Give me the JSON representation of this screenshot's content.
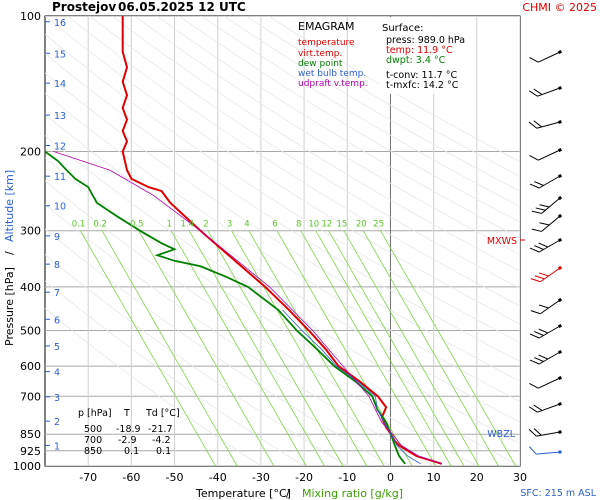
{
  "header": {
    "station": "Prostejov",
    "datetime": "06.05.2025 12 UTC",
    "credit": "CHMI © 2025"
  },
  "legend": {
    "title": "EMAGRAM",
    "items": [
      {
        "label": "temperature",
        "color": "#e00000"
      },
      {
        "label": "virt.temp.",
        "color": "#e00000"
      },
      {
        "label": "dew point",
        "color": "#008000"
      },
      {
        "label": "wet bulb temp.",
        "color": "#2a5fd0"
      },
      {
        "label": "udpraft v.temp.",
        "color": "#b000b0"
      }
    ]
  },
  "surface": {
    "title": "Surface:",
    "press": "press: 989.0 hPa",
    "temp": "temp: 11.9 °C",
    "dwpt": "dwpt: 3.4 °C",
    "tconv": "t-conv: 11.7 °C",
    "tmxfc": "t-mxfc: 14.2 °C"
  },
  "levels_table": {
    "headers": [
      "p [hPa]",
      "T",
      "Td [°C]"
    ],
    "rows": [
      [
        "500",
        "-18.9",
        "-21.7"
      ],
      [
        "700",
        "-2.9",
        "-4.2"
      ],
      [
        "850",
        "0.1",
        "0.1"
      ]
    ]
  },
  "markers": {
    "mxws": "MXWS",
    "wbzl": "WBZL"
  },
  "footer": {
    "sfc": "SFC: 215 m ASL"
  },
  "chart_data": {
    "type": "line",
    "title": "Prostejov 06.05.2025 12 UTC",
    "xlabel": "Temperature [°C]",
    "xlabel2": "Mixing ratio [g/kg]",
    "ylabel": "Pressure [hPa]",
    "ylabel2": "Altitude [km]",
    "xlim": [
      -80,
      30
    ],
    "ylim": [
      1000,
      100
    ],
    "y_scale": "log",
    "x_ticks": [
      -70,
      -60,
      -50,
      -40,
      -30,
      -20,
      -10,
      0,
      10,
      20,
      30
    ],
    "p_ticks": [
      {
        "p": 100,
        "label": "100"
      },
      {
        "p": 200,
        "label": "200"
      },
      {
        "p": 300,
        "label": "300"
      },
      {
        "p": 400,
        "label": "400"
      },
      {
        "p": 500,
        "label": "500"
      },
      {
        "p": 600,
        "label": "600"
      },
      {
        "p": 700,
        "label": "700"
      },
      {
        "p": 850,
        "label": "850"
      },
      {
        "p": 925,
        "label": "925"
      },
      {
        "p": 1000,
        "label": "1000"
      }
    ],
    "altitude_ticks": [
      {
        "km": 1,
        "p": 900
      },
      {
        "km": 2,
        "p": 795
      },
      {
        "km": 3,
        "p": 702
      },
      {
        "km": 4,
        "p": 617
      },
      {
        "km": 5,
        "p": 541
      },
      {
        "km": 6,
        "p": 472
      },
      {
        "km": 7,
        "p": 411
      },
      {
        "km": 8,
        "p": 356
      },
      {
        "km": 9,
        "p": 308
      },
      {
        "km": 10,
        "p": 264
      },
      {
        "km": 11,
        "p": 227
      },
      {
        "km": 12,
        "p": 194
      },
      {
        "km": 13,
        "p": 166
      },
      {
        "km": 14,
        "p": 141
      },
      {
        "km": 15,
        "p": 121
      },
      {
        "km": 16,
        "p": 103
      }
    ],
    "mixing_ratio_labels": [
      "0.1",
      "0.2",
      "0.5",
      "1",
      "1.4",
      "2",
      "3",
      "4",
      "6",
      "8",
      "10",
      "12",
      "15",
      "20",
      "25"
    ],
    "mixing_ratio_lines": [
      {
        "label": "0.1",
        "t1000": -40.5
      },
      {
        "label": "0.2",
        "t1000": -35.5
      },
      {
        "label": "0.5",
        "t1000": -27
      },
      {
        "label": "1",
        "t1000": -19.5
      },
      {
        "label": "1.4",
        "t1000": -15.3
      },
      {
        "label": "2",
        "t1000": -11
      },
      {
        "label": "3",
        "t1000": -5.5
      },
      {
        "label": "4",
        "t1000": -1.5
      },
      {
        "label": "6",
        "t1000": 5
      },
      {
        "label": "8",
        "t1000": 10.5
      },
      {
        "label": "10",
        "t1000": 14
      },
      {
        "label": "12",
        "t1000": 17
      },
      {
        "label": "15",
        "t1000": 20.5
      },
      {
        "label": "20",
        "t1000": 25
      },
      {
        "label": "25",
        "t1000": 29
      }
    ],
    "series": [
      {
        "name": "temperature",
        "color": "#e00000",
        "points": [
          [
            989,
            11.9
          ],
          [
            950,
            6
          ],
          [
            900,
            2
          ],
          [
            880,
            1
          ],
          [
            850,
            0.1
          ],
          [
            820,
            -1
          ],
          [
            780,
            -2
          ],
          [
            760,
            -1.5
          ],
          [
            740,
            -1
          ],
          [
            700,
            -2.9
          ],
          [
            650,
            -7
          ],
          [
            600,
            -12
          ],
          [
            550,
            -15
          ],
          [
            500,
            -18.9
          ],
          [
            450,
            -23.5
          ],
          [
            400,
            -29
          ],
          [
            350,
            -36
          ],
          [
            300,
            -44
          ],
          [
            260,
            -51
          ],
          [
            245,
            -53
          ],
          [
            240,
            -56
          ],
          [
            235,
            -58
          ],
          [
            230,
            -60
          ],
          [
            220,
            -61
          ],
          [
            200,
            -62
          ],
          [
            190,
            -61
          ],
          [
            180,
            -62
          ],
          [
            170,
            -61
          ],
          [
            160,
            -62
          ],
          [
            150,
            -61
          ],
          [
            140,
            -62
          ],
          [
            130,
            -61
          ],
          [
            120,
            -62
          ],
          [
            110,
            -62
          ],
          [
            100,
            -62
          ]
        ]
      },
      {
        "name": "dew point",
        "color": "#008000",
        "points": [
          [
            989,
            3.4
          ],
          [
            950,
            2
          ],
          [
            900,
            1
          ],
          [
            850,
            0.1
          ],
          [
            800,
            -1
          ],
          [
            750,
            -3
          ],
          [
            700,
            -4.2
          ],
          [
            650,
            -8
          ],
          [
            600,
            -13
          ],
          [
            550,
            -17
          ],
          [
            500,
            -21.7
          ],
          [
            450,
            -26
          ],
          [
            400,
            -33
          ],
          [
            380,
            -38
          ],
          [
            360,
            -44
          ],
          [
            350,
            -50
          ],
          [
            340,
            -54
          ],
          [
            330,
            -50
          ],
          [
            320,
            -53
          ],
          [
            300,
            -58
          ],
          [
            280,
            -63
          ],
          [
            260,
            -68
          ],
          [
            240,
            -70
          ],
          [
            230,
            -73
          ],
          [
            220,
            -75
          ],
          [
            210,
            -77
          ],
          [
            200,
            -80
          ]
        ]
      },
      {
        "name": "wet bulb temp.",
        "color": "#2a5fd0",
        "points": [
          [
            989,
            7
          ],
          [
            950,
            4
          ],
          [
            900,
            1.5
          ],
          [
            850,
            0.1
          ],
          [
            800,
            -1.5
          ],
          [
            750,
            -3
          ],
          [
            700,
            -3.5
          ],
          [
            650,
            -7.5
          ],
          [
            600,
            -12.5
          ],
          [
            550,
            -16
          ],
          [
            500,
            -20.5
          ],
          [
            450,
            -25
          ]
        ]
      },
      {
        "name": "udpraft v.temp.",
        "color": "#b000b0",
        "points": [
          [
            989,
            11.9
          ],
          [
            950,
            6.5
          ],
          [
            900,
            2.5
          ],
          [
            850,
            0.5
          ],
          [
            800,
            -2
          ],
          [
            700,
            -5
          ],
          [
            600,
            -11
          ],
          [
            500,
            -18
          ],
          [
            400,
            -28
          ],
          [
            300,
            -44
          ],
          [
            250,
            -55
          ],
          [
            220,
            -65
          ],
          [
            200,
            -78
          ]
        ]
      }
    ]
  }
}
